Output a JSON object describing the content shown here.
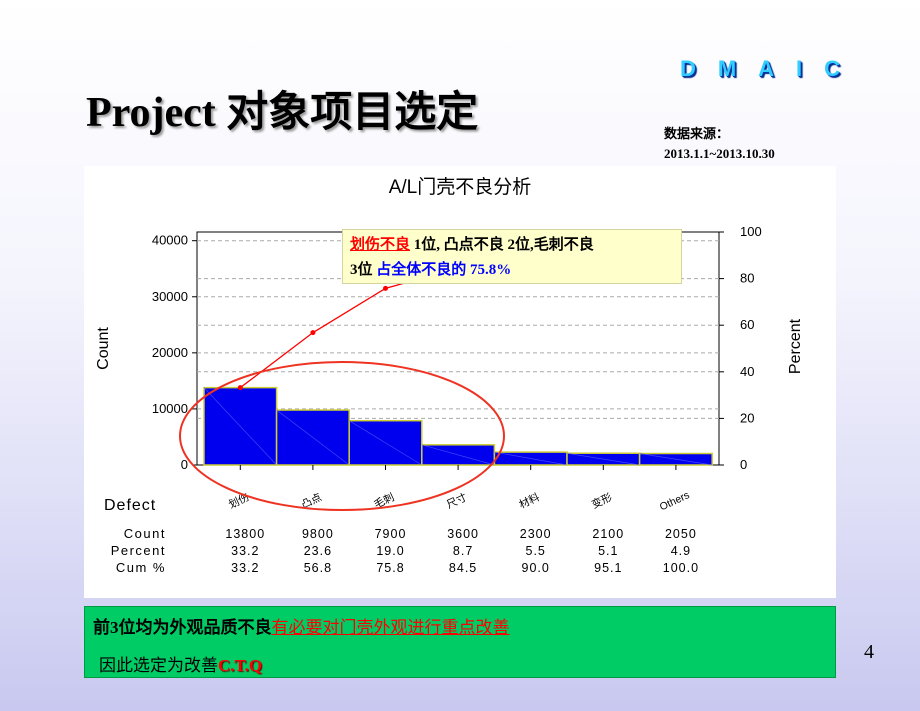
{
  "header": {
    "dmaic_letters": [
      "D",
      "M",
      "A",
      "I",
      "C"
    ],
    "title_latin": "Project",
    "title_cn": "对象项目选定",
    "source_label": "数据来源：",
    "source_period": "2013.1.1~2013.10.30"
  },
  "callout": {
    "part1_red": "划伤不良",
    "part1_rest": "1位, 凸点不良 2位,毛刺不良",
    "part2_black": "3位",
    "part2_blue": "占全体不良的 75.8%"
  },
  "conclusion": {
    "line1_black": "前3位均为外观品质不良",
    "line1_red": "有必要对门壳外观进行重点改善",
    "line2_black": "因此选定为改善",
    "line2_red": "C.T.Q"
  },
  "page_number": "4",
  "colors": {
    "bar_fill": "#0000ee",
    "bar_border": "#cccc33",
    "cum_line": "#ff0000",
    "ellipse": "#ee3322",
    "bottom_box": "#00cc66"
  },
  "chart_data": {
    "type": "bar",
    "title": "A/L门壳不良分析",
    "ylabel": "Count",
    "ylabel_right": "Percent",
    "xlabel": "Defect",
    "categories": [
      "划伤",
      "凸点",
      "毛刺",
      "尺寸",
      "材料",
      "变形",
      "Others"
    ],
    "values": [
      13800,
      9800,
      7900,
      3600,
      2300,
      2100,
      2050
    ],
    "percent": [
      "33.2",
      "23.6",
      "19.0",
      "8.7",
      "5.5",
      "5.1",
      "4.9"
    ],
    "cum_percent": [
      "33.2",
      "56.8",
      "75.8",
      "84.5",
      "90.0",
      "95.1",
      "100.0"
    ],
    "count_labels": [
      "13800",
      "9800",
      "7900",
      "3600",
      "2300",
      "2100",
      "2050"
    ],
    "ylim": [
      0,
      41550
    ],
    "yticks": [
      0,
      10000,
      20000,
      30000,
      40000
    ],
    "ylim_right": [
      0,
      100
    ],
    "yticks_right": [
      0,
      20,
      40,
      60,
      80,
      100
    ],
    "table_row_labels": [
      "Count",
      "Percent",
      "Cum %"
    ],
    "grid": true
  }
}
